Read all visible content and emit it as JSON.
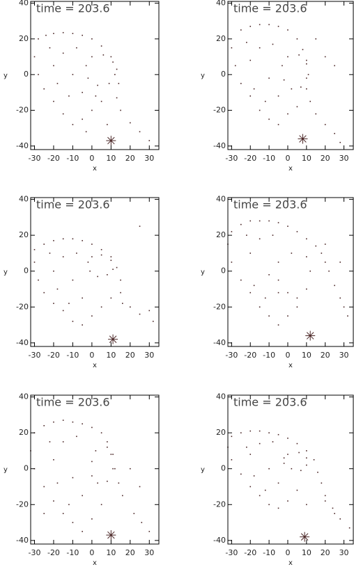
{
  "chart_data": [
    {
      "type": "scatter",
      "title": "time = 203.6",
      "x_label": "x",
      "y_label": "y",
      "color": "#4a2626",
      "xlim": [
        -32,
        35
      ],
      "ylim": [
        -42,
        41
      ],
      "xticks": [
        -30,
        -20,
        -10,
        0,
        10,
        20,
        30
      ],
      "yticks": [
        -40,
        -20,
        0,
        20,
        40
      ],
      "x": [
        -28,
        -24,
        -20,
        -15,
        -10,
        -5,
        0,
        5,
        10,
        13,
        14,
        13,
        15,
        20,
        25,
        30,
        0,
        6,
        11,
        12,
        9,
        3,
        -2,
        -3,
        -30,
        -28,
        -25,
        -20,
        -15,
        -10,
        -5,
        0,
        5,
        -20,
        -15,
        -10,
        -5,
        -12,
        -22,
        -8,
        2,
        -18,
        8,
        -3
      ],
      "y": [
        20,
        22,
        23,
        23.5,
        23,
        22,
        20,
        16,
        10,
        3,
        -5,
        -13,
        -20,
        -27,
        -32,
        -37,
        10,
        11,
        7,
        0,
        -5,
        -6,
        -2,
        5,
        10,
        0,
        -8,
        -15,
        -22,
        -28,
        -25,
        -20,
        -15,
        5,
        12,
        0,
        -10,
        -12,
        15,
        15,
        -12,
        -5,
        -28,
        -32
      ],
      "marker": {
        "x": 10,
        "y": -37
      }
    },
    {
      "type": "scatter",
      "title": "time = 203.6",
      "x_label": "x",
      "y_label": "y",
      "color": "#4a2626",
      "xlim": [
        -32,
        35
      ],
      "ylim": [
        -42,
        41
      ],
      "xticks": [
        -30,
        -20,
        -10,
        0,
        10,
        20,
        30
      ],
      "yticks": [
        -40,
        -20,
        0,
        20,
        40
      ],
      "x": [
        -25,
        -20,
        -15,
        -10,
        -5,
        0,
        5,
        8,
        10,
        11,
        10,
        12,
        15,
        20,
        25,
        28,
        0,
        6,
        10,
        10,
        7,
        2,
        -2,
        -3,
        -30,
        -28,
        -25,
        -20,
        -15,
        -10,
        -5,
        0,
        5,
        -20,
        -15,
        -10,
        -5,
        -12,
        -22,
        -8,
        15,
        -18,
        20,
        25
      ],
      "y": [
        25,
        27,
        28,
        28,
        27,
        25,
        20,
        14,
        8,
        0,
        -8,
        -15,
        -22,
        -28,
        -33,
        -38,
        10,
        11,
        6,
        -2,
        -7,
        -8,
        -3,
        5,
        15,
        5,
        -5,
        -12,
        -20,
        -25,
        -28,
        -22,
        -18,
        8,
        15,
        -2,
        -12,
        -15,
        18,
        17,
        20,
        -8,
        10,
        5
      ],
      "marker": {
        "x": 8,
        "y": -36
      }
    },
    {
      "type": "scatter",
      "title": "time = 203.6",
      "x_label": "x",
      "y_label": "y",
      "color": "#4a2626",
      "xlim": [
        -32,
        35
      ],
      "ylim": [
        -42,
        41
      ],
      "xticks": [
        -30,
        -20,
        -10,
        0,
        10,
        20,
        30
      ],
      "yticks": [
        -40,
        -20,
        0,
        20,
        40
      ],
      "x": [
        -30,
        -25,
        -20,
        -15,
        -10,
        -5,
        0,
        5,
        10,
        13,
        15,
        15,
        16,
        20,
        25,
        32,
        0,
        5,
        10,
        11,
        8,
        3,
        -1,
        -2,
        -30,
        -28,
        -25,
        -20,
        -15,
        -10,
        -5,
        0,
        5,
        -20,
        -15,
        -10,
        -5,
        -12,
        -22,
        -8,
        10,
        -18,
        25,
        30
      ],
      "y": [
        12,
        15,
        17,
        18,
        18,
        17,
        15,
        12,
        8,
        2,
        -5,
        -12,
        -18,
        -20,
        -24,
        -28,
        8,
        9,
        6,
        1,
        -2,
        -3,
        0,
        5,
        5,
        -5,
        -12,
        -18,
        -22,
        -28,
        -30,
        -25,
        -20,
        0,
        8,
        -5,
        -15,
        -18,
        10,
        10,
        -15,
        -10,
        25,
        -22
      ],
      "marker": {
        "x": 11,
        "y": -38
      }
    },
    {
      "type": "scatter",
      "title": "time = 203.6",
      "x_label": "x",
      "y_label": "y",
      "color": "#4a2626",
      "xlim": [
        -32,
        35
      ],
      "ylim": [
        -42,
        41
      ],
      "xticks": [
        -30,
        -20,
        -10,
        0,
        10,
        20,
        30
      ],
      "yticks": [
        -40,
        -20,
        0,
        20,
        40
      ],
      "x": [
        -30,
        -25,
        -20,
        -15,
        -10,
        -5,
        0,
        5,
        10,
        15,
        18,
        20,
        22,
        25,
        28,
        32,
        -5,
        2,
        10,
        12,
        10,
        5,
        0,
        -5,
        -32,
        -30,
        -25,
        -20,
        -15,
        -10,
        -5,
        0,
        5,
        -20,
        -15,
        -10,
        -5,
        -12,
        -22,
        -8,
        20,
        -18,
        28,
        30
      ],
      "y": [
        22,
        26,
        28,
        28,
        28,
        27,
        25,
        22,
        18,
        14,
        10,
        5,
        0,
        -8,
        -15,
        -25,
        5,
        10,
        8,
        0,
        -10,
        -15,
        -12,
        -5,
        15,
        5,
        -5,
        -12,
        -20,
        -25,
        -30,
        -25,
        -20,
        10,
        18,
        -2,
        -12,
        -15,
        20,
        20,
        15,
        -8,
        5,
        -20
      ],
      "marker": {
        "x": 12,
        "y": -36
      }
    },
    {
      "type": "scatter",
      "title": "time = 203.6",
      "x_label": "x",
      "y_label": "y",
      "color": "#4a2626",
      "xlim": [
        -32,
        35
      ],
      "ylim": [
        -42,
        41
      ],
      "xticks": [
        -30,
        -20,
        -10,
        0,
        10,
        20,
        30
      ],
      "yticks": [
        -40,
        -20,
        0,
        20,
        40
      ],
      "x": [
        -30,
        -25,
        -20,
        -15,
        -10,
        -5,
        0,
        5,
        8,
        10,
        12,
        14,
        16,
        22,
        26,
        30,
        2,
        8,
        11,
        11,
        8,
        3,
        0,
        0,
        -32,
        -30,
        -25,
        -20,
        -15,
        -10,
        -5,
        0,
        5,
        -20,
        -15,
        -10,
        -5,
        -12,
        -22,
        -8,
        20,
        -18,
        25,
        -25
      ],
      "y": [
        20,
        24,
        26,
        27,
        26,
        25,
        23,
        20,
        15,
        8,
        0,
        -8,
        -15,
        -25,
        -30,
        -35,
        10,
        12,
        8,
        0,
        -7,
        -8,
        -4,
        4,
        10,
        0,
        -10,
        -18,
        -25,
        -30,
        -35,
        -28,
        -20,
        5,
        15,
        -5,
        -15,
        -20,
        15,
        18,
        0,
        -8,
        -10,
        -25
      ],
      "marker": {
        "x": 10,
        "y": -37
      }
    },
    {
      "type": "scatter",
      "title": "time = 203.6",
      "x_label": "x",
      "y_label": "y",
      "color": "#4a2626",
      "xlim": [
        -32,
        35
      ],
      "ylim": [
        -42,
        41
      ],
      "xticks": [
        -30,
        -20,
        -10,
        0,
        10,
        20,
        30
      ],
      "yticks": [
        -40,
        -20,
        0,
        20,
        40
      ],
      "x": [
        -30,
        -25,
        -20,
        -15,
        -10,
        -5,
        0,
        5,
        10,
        14,
        16,
        18,
        20,
        24,
        28,
        33,
        0,
        6,
        10,
        10,
        7,
        2,
        -2,
        -2,
        -32,
        -30,
        -25,
        -20,
        -15,
        -10,
        -5,
        0,
        5,
        -20,
        -15,
        -10,
        -5,
        -12,
        -22,
        -8,
        10,
        -18,
        25,
        20
      ],
      "y": [
        18,
        20,
        21,
        21,
        20,
        19,
        17,
        14,
        10,
        5,
        -2,
        -8,
        -15,
        -22,
        -28,
        -33,
        8,
        9,
        6,
        2,
        -1,
        0,
        3,
        6,
        12,
        5,
        -3,
        -10,
        -15,
        -20,
        -22,
        -18,
        -12,
        8,
        14,
        0,
        -8,
        -12,
        12,
        15,
        -20,
        -4,
        -25,
        -18
      ],
      "marker": {
        "x": 9,
        "y": -38
      }
    }
  ]
}
